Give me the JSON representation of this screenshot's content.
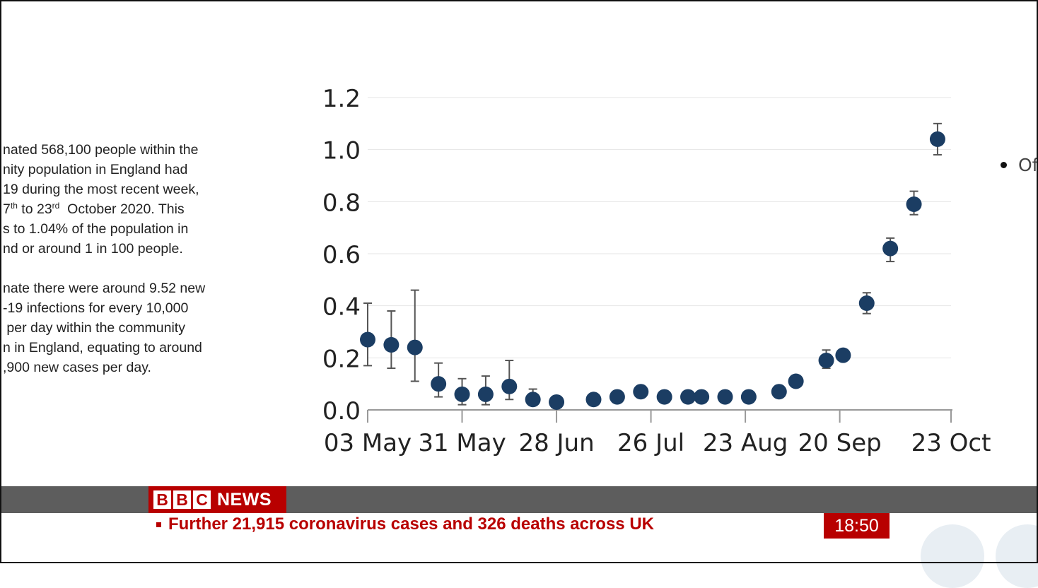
{
  "text_panel": {
    "paragraphs": [
      {
        "lines": [
          "nated 568,100 people within the",
          "nity population in England had",
          "19 during the most recent week,",
          {
            "parts": [
              {
                "t": "7"
              },
              {
                "sup": "th"
              },
              {
                "t": " to 23"
              },
              {
                "sup": "rd"
              },
              {
                "t": "  October 2020. This"
              }
            ]
          },
          "s to 1.04% of the population in",
          "nd or around 1 in 100 people."
        ]
      },
      {
        "lines": [
          "nate there were around 9.52 new",
          "-19 infections for every 10,000",
          " per day within the community",
          "n in England, equating to around",
          ",900 new cases per day."
        ]
      }
    ]
  },
  "chart_data": {
    "type": "scatter",
    "title": "",
    "xlabel": "",
    "ylabel": "",
    "ylim": [
      0,
      1.2
    ],
    "y_ticks": [
      "0.0",
      "0.2",
      "0.4",
      "0.6",
      "0.8",
      "1.0",
      "1.2"
    ],
    "x_ticks": [
      "03 May",
      "31 May",
      "28 Jun",
      "26 Jul",
      "23 Aug",
      "20 Sep",
      "23 Oct"
    ],
    "grid": true,
    "point_color": "#1b3d63",
    "error_color": "#555555",
    "series": [
      {
        "points": [
          {
            "x": "2020-05-03",
            "y": 0.27,
            "low": 0.17,
            "high": 0.41
          },
          {
            "x": "2020-05-10",
            "y": 0.25,
            "low": 0.16,
            "high": 0.38
          },
          {
            "x": "2020-05-17",
            "y": 0.24,
            "low": 0.11,
            "high": 0.46
          },
          {
            "x": "2020-05-24",
            "y": 0.1,
            "low": 0.05,
            "high": 0.18
          },
          {
            "x": "2020-05-31",
            "y": 0.06,
            "low": 0.02,
            "high": 0.12
          },
          {
            "x": "2020-06-07",
            "y": 0.06,
            "low": 0.02,
            "high": 0.13
          },
          {
            "x": "2020-06-14",
            "y": 0.09,
            "low": 0.04,
            "high": 0.19
          },
          {
            "x": "2020-06-21",
            "y": 0.04,
            "low": 0.02,
            "high": 0.08
          },
          {
            "x": "2020-06-28",
            "y": 0.03,
            "low": 0.01,
            "high": 0.05
          },
          {
            "x": "2020-07-09",
            "y": 0.04,
            "low": 0.03,
            "high": 0.06
          },
          {
            "x": "2020-07-16",
            "y": 0.05,
            "low": 0.04,
            "high": 0.07
          },
          {
            "x": "2020-07-23",
            "y": 0.07,
            "low": 0.05,
            "high": 0.09
          },
          {
            "x": "2020-07-30",
            "y": 0.05,
            "low": 0.04,
            "high": 0.07
          },
          {
            "x": "2020-08-06",
            "y": 0.05,
            "low": 0.04,
            "high": 0.07
          },
          {
            "x": "2020-08-10",
            "y": 0.05,
            "low": 0.04,
            "high": 0.07
          },
          {
            "x": "2020-08-17",
            "y": 0.05,
            "low": 0.04,
            "high": 0.07
          },
          {
            "x": "2020-08-24",
            "y": 0.05,
            "low": 0.04,
            "high": 0.07
          },
          {
            "x": "2020-09-02",
            "y": 0.07,
            "low": 0.05,
            "high": 0.09
          },
          {
            "x": "2020-09-07",
            "y": 0.11,
            "low": 0.09,
            "high": 0.13
          },
          {
            "x": "2020-09-16",
            "y": 0.19,
            "low": 0.16,
            "high": 0.23
          },
          {
            "x": "2020-09-21",
            "y": 0.21,
            "low": 0.19,
            "high": 0.23
          },
          {
            "x": "2020-09-28",
            "y": 0.41,
            "low": 0.37,
            "high": 0.45
          },
          {
            "x": "2020-10-05",
            "y": 0.62,
            "low": 0.57,
            "high": 0.66
          },
          {
            "x": "2020-10-12",
            "y": 0.79,
            "low": 0.75,
            "high": 0.84
          },
          {
            "x": "2020-10-19",
            "y": 1.04,
            "low": 0.98,
            "high": 1.1
          }
        ]
      }
    ],
    "legend": {
      "text": "Of",
      "position": "right"
    }
  },
  "ticker": {
    "logo_letters": [
      "B",
      "B",
      "C"
    ],
    "logo_word": "NEWS",
    "headline": "Further 21,915 coronavirus cases and 326 deaths across UK",
    "time": "18:50",
    "colors": {
      "red": "#b80000",
      "grey": "#5d5d5d"
    }
  }
}
